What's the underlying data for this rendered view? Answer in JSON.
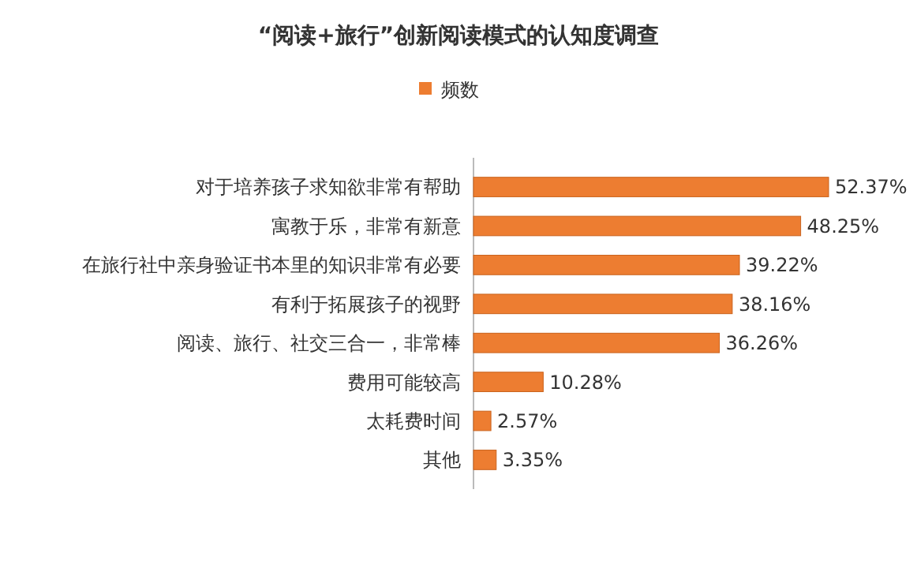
{
  "chart_data": {
    "type": "bar",
    "orientation": "horizontal",
    "title": "“阅读+旅行”创新阅读模式的认知度调查",
    "legend": "top",
    "categories": [
      "对于培养孩子求知欲非常有帮助",
      "寓教于乐，非常有新意",
      "在旅行社中亲身验证书本里的知识非常有必要",
      "有利于拓展孩子的视野",
      "阅读、旅行、社交三合一，非常棒",
      "费用可能较高",
      "太耗费时间",
      "其他"
    ],
    "series": [
      {
        "name": "频数",
        "color": "#ed7d31",
        "values": [
          52.37,
          48.25,
          39.22,
          38.16,
          36.26,
          10.28,
          2.57,
          3.35
        ],
        "value_labels": [
          "52.37%",
          "48.25%",
          "39.22%",
          "38.16%",
          "36.26%",
          "10.28%",
          "2.57%",
          "3.35%"
        ]
      }
    ]
  }
}
